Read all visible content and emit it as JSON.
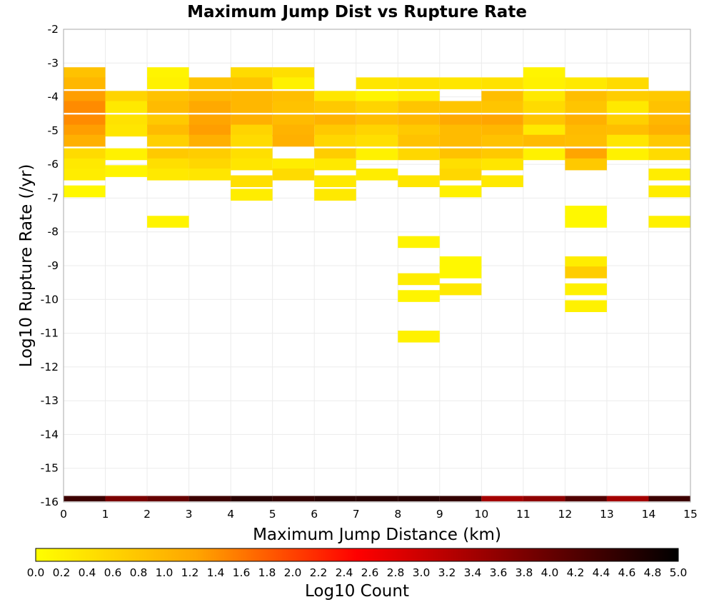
{
  "chart_data": {
    "type": "heatmap",
    "title": "Maximum Jump Dist vs Rupture Rate",
    "xlabel": "Maximum Jump Distance (km)",
    "ylabel": "Log10 Rupture Rate (/yr)",
    "xlim": [
      0,
      15
    ],
    "ylim": [
      -16,
      -2
    ],
    "x_ticks": [
      "0",
      "1",
      "2",
      "3",
      "4",
      "5",
      "6",
      "7",
      "8",
      "9",
      "10",
      "11",
      "12",
      "13",
      "14",
      "15"
    ],
    "y_ticks": [
      "-2",
      "-3",
      "-4",
      "-5",
      "-6",
      "-7",
      "-8",
      "-9",
      "-10",
      "-11",
      "-12",
      "-13",
      "-14",
      "-15",
      "-16"
    ],
    "grid": true,
    "cell_height": 0.35,
    "colorbar": {
      "label": "Log10 Count",
      "range": [
        0.0,
        5.0
      ],
      "ticks": [
        "0.0",
        "0.2",
        "0.4",
        "0.6",
        "0.8",
        "1.0",
        "1.2",
        "1.4",
        "1.6",
        "1.8",
        "2.0",
        "2.2",
        "2.4",
        "2.6",
        "2.8",
        "3.0",
        "3.2",
        "3.4",
        "3.6",
        "3.8",
        "4.0",
        "4.2",
        "4.4",
        "4.6",
        "4.8",
        "5.0"
      ],
      "colors": [
        "#ffff00",
        "#ffa500",
        "#ff0000",
        "#800000",
        "#000000"
      ]
    },
    "x_bins": [
      0,
      1,
      2,
      3,
      4,
      5,
      6,
      7,
      8,
      9,
      10,
      11,
      12,
      13,
      14
    ],
    "bottom_row": {
      "y": -15.9,
      "values": [
        4.4,
        3.8,
        4.0,
        4.4,
        4.6,
        4.5,
        4.6,
        4.6,
        4.6,
        4.5,
        3.4,
        3.6,
        4.2,
        3.4,
        4.4
      ]
    },
    "cells": [
      {
        "x": 0,
        "rows": [
          [
            -3.3,
            0.85
          ],
          [
            -3.6,
            1.0
          ],
          [
            -4.0,
            1.3
          ],
          [
            -4.3,
            1.45
          ],
          [
            -4.7,
            1.45
          ],
          [
            -5.0,
            1.3
          ],
          [
            -5.3,
            1.1
          ],
          [
            -5.7,
            0.5
          ],
          [
            -6.0,
            0.3
          ],
          [
            -6.3,
            0.25
          ],
          [
            -6.8,
            0.1
          ]
        ]
      },
      {
        "x": 1,
        "rows": [
          [
            -4.0,
            0.6
          ],
          [
            -4.3,
            0.3
          ],
          [
            -4.7,
            0.4
          ],
          [
            -5.0,
            0.35
          ],
          [
            -5.7,
            0.2
          ],
          [
            -6.2,
            0.15
          ]
        ]
      },
      {
        "x": 2,
        "rows": [
          [
            -3.3,
            0.15
          ],
          [
            -3.6,
            0.2
          ],
          [
            -4.0,
            0.85
          ],
          [
            -4.3,
            0.95
          ],
          [
            -4.7,
            0.75
          ],
          [
            -5.0,
            0.95
          ],
          [
            -5.3,
            0.65
          ],
          [
            -5.7,
            0.75
          ],
          [
            -6.0,
            0.45
          ],
          [
            -6.3,
            0.3
          ],
          [
            -7.7,
            0.15
          ]
        ]
      },
      {
        "x": 3,
        "rows": [
          [
            -3.6,
            0.8
          ],
          [
            -4.0,
            1.0
          ],
          [
            -4.3,
            1.2
          ],
          [
            -4.7,
            1.25
          ],
          [
            -5.0,
            1.3
          ],
          [
            -5.3,
            1.1
          ],
          [
            -5.7,
            0.7
          ],
          [
            -6.0,
            0.55
          ],
          [
            -6.3,
            0.35
          ]
        ]
      },
      {
        "x": 4,
        "rows": [
          [
            -3.3,
            0.5
          ],
          [
            -3.6,
            0.8
          ],
          [
            -4.0,
            1.0
          ],
          [
            -4.3,
            1.0
          ],
          [
            -4.7,
            1.1
          ],
          [
            -5.0,
            0.6
          ],
          [
            -5.3,
            0.5
          ],
          [
            -5.7,
            0.45
          ],
          [
            -6.0,
            0.35
          ],
          [
            -6.5,
            0.45
          ],
          [
            -6.9,
            0.25
          ]
        ]
      },
      {
        "x": 5,
        "rows": [
          [
            -3.3,
            0.45
          ],
          [
            -3.6,
            0.2
          ],
          [
            -4.0,
            0.9
          ],
          [
            -4.3,
            0.85
          ],
          [
            -4.7,
            0.95
          ],
          [
            -5.0,
            1.05
          ],
          [
            -5.3,
            1.1
          ],
          [
            -6.0,
            0.25
          ],
          [
            -6.3,
            0.5
          ]
        ]
      },
      {
        "x": 6,
        "rows": [
          [
            -4.0,
            0.35
          ],
          [
            -4.3,
            0.75
          ],
          [
            -4.7,
            1.05
          ],
          [
            -5.0,
            0.75
          ],
          [
            -5.3,
            0.55
          ],
          [
            -5.7,
            0.7
          ],
          [
            -6.0,
            0.3
          ],
          [
            -6.5,
            0.3
          ],
          [
            -6.9,
            0.3
          ]
        ]
      },
      {
        "x": 7,
        "rows": [
          [
            -3.6,
            0.35
          ],
          [
            -4.0,
            0.15
          ],
          [
            -4.3,
            0.6
          ],
          [
            -4.7,
            0.9
          ],
          [
            -5.0,
            0.6
          ],
          [
            -5.3,
            0.45
          ],
          [
            -5.7,
            0.2
          ],
          [
            -6.3,
            0.25
          ]
        ]
      },
      {
        "x": 8,
        "rows": [
          [
            -3.6,
            0.4
          ],
          [
            -4.0,
            0.3
          ],
          [
            -4.3,
            0.8
          ],
          [
            -4.7,
            1.0
          ],
          [
            -5.0,
            0.75
          ],
          [
            -5.3,
            0.85
          ],
          [
            -5.7,
            0.55
          ],
          [
            -6.5,
            0.35
          ],
          [
            -8.3,
            0.15
          ],
          [
            -9.4,
            0.25
          ],
          [
            -9.9,
            0.15
          ],
          [
            -11.1,
            0.2
          ]
        ]
      },
      {
        "x": 9,
        "rows": [
          [
            -3.6,
            0.35
          ],
          [
            -4.3,
            0.8
          ],
          [
            -4.7,
            1.2
          ],
          [
            -5.0,
            0.95
          ],
          [
            -5.3,
            0.95
          ],
          [
            -5.7,
            0.85
          ],
          [
            -6.0,
            0.45
          ],
          [
            -6.3,
            0.55
          ],
          [
            -6.8,
            0.2
          ],
          [
            -8.9,
            0.1
          ],
          [
            -9.2,
            0.1
          ],
          [
            -9.7,
            0.3
          ]
        ]
      },
      {
        "x": 10,
        "rows": [
          [
            -3.6,
            0.4
          ],
          [
            -4.0,
            0.9
          ],
          [
            -4.3,
            0.8
          ],
          [
            -4.7,
            1.25
          ],
          [
            -5.0,
            1.0
          ],
          [
            -5.3,
            0.85
          ],
          [
            -5.7,
            0.75
          ],
          [
            -6.0,
            0.35
          ],
          [
            -6.5,
            0.3
          ]
        ]
      },
      {
        "x": 11,
        "rows": [
          [
            -3.3,
            0.15
          ],
          [
            -3.6,
            0.2
          ],
          [
            -4.0,
            0.3
          ],
          [
            -4.3,
            0.5
          ],
          [
            -4.7,
            0.8
          ],
          [
            -5.0,
            0.3
          ],
          [
            -5.3,
            0.95
          ],
          [
            -5.7,
            0.2
          ]
        ]
      },
      {
        "x": 12,
        "rows": [
          [
            -3.6,
            0.3
          ],
          [
            -4.0,
            0.9
          ],
          [
            -4.3,
            0.8
          ],
          [
            -4.7,
            1.1
          ],
          [
            -5.0,
            0.95
          ],
          [
            -5.3,
            0.9
          ],
          [
            -5.7,
            1.25
          ],
          [
            -6.0,
            0.75
          ],
          [
            -7.4,
            0.1
          ],
          [
            -7.7,
            0.1
          ],
          [
            -8.9,
            0.25
          ],
          [
            -9.2,
            0.7
          ],
          [
            -9.7,
            0.2
          ],
          [
            -10.2,
            0.2
          ]
        ]
      },
      {
        "x": 13,
        "rows": [
          [
            -3.6,
            0.5
          ],
          [
            -4.0,
            0.7
          ],
          [
            -4.3,
            0.3
          ],
          [
            -4.7,
            0.65
          ],
          [
            -5.0,
            0.9
          ],
          [
            -5.3,
            0.35
          ],
          [
            -5.7,
            0.2
          ]
        ]
      },
      {
        "x": 14,
        "rows": [
          [
            -4.0,
            0.75
          ],
          [
            -4.3,
            0.85
          ],
          [
            -4.7,
            1.0
          ],
          [
            -5.0,
            1.1
          ],
          [
            -5.3,
            0.75
          ],
          [
            -5.7,
            0.5
          ],
          [
            -6.3,
            0.25
          ],
          [
            -6.8,
            0.25
          ],
          [
            -7.7,
            0.2
          ]
        ]
      }
    ]
  }
}
